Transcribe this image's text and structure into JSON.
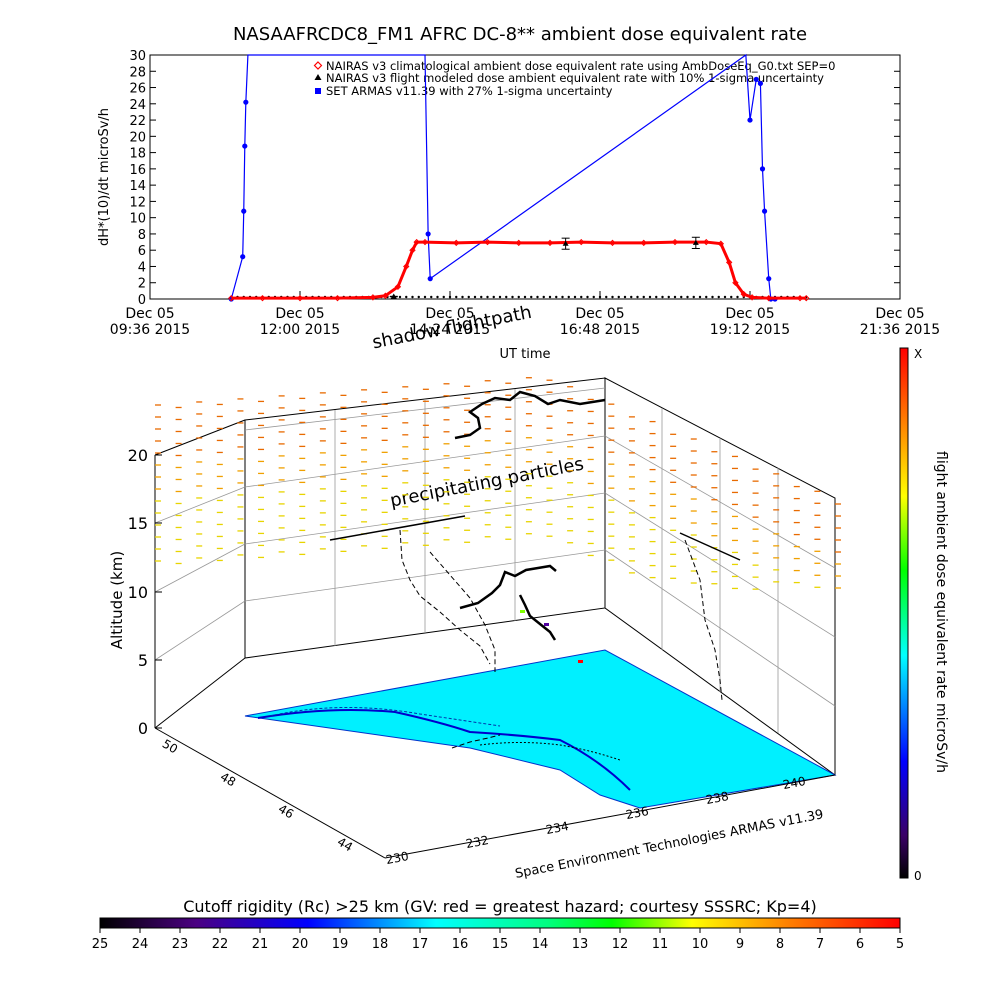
{
  "title": "NASAAFRCDC8_FM1 AFRC DC-8** ambient dose equivalent rate",
  "top_chart": {
    "ylabel": "dH*(10)/dt microSv/h",
    "xlabel": "UT time",
    "y_ticks": [
      "0",
      "2",
      "4",
      "6",
      "8",
      "10",
      "12",
      "14",
      "16",
      "18",
      "20",
      "22",
      "24",
      "26",
      "28",
      "30"
    ],
    "x_ticks": [
      {
        "l1": "Dec 05",
        "l2": "09:36 2015"
      },
      {
        "l1": "Dec 05",
        "l2": "12:00 2015"
      },
      {
        "l1": "Dec 05",
        "l2": "14:24 2015"
      },
      {
        "l1": "Dec 05",
        "l2": "16:48 2015"
      },
      {
        "l1": "Dec 05",
        "l2": "19:12 2015"
      },
      {
        "l1": "Dec 05",
        "l2": "21:36 2015"
      }
    ],
    "legend": [
      "NAIRAS v3 climatological ambient dose equivalent rate using AmbDoseEq_G0.txt SEP=0",
      "NAIRAS v3 flight modeled dose ambient equivalent rate with 10% 1-sigma uncertainty",
      "SET ARMAS v11.39 with 27% 1-sigma uncertainty"
    ],
    "colors": {
      "nairas": "#ff0000",
      "flight": "#000000",
      "armas": "#0000ff"
    }
  },
  "chart_data": [
    {
      "type": "line",
      "title": "NASAAFRCDC8_FM1 AFRC DC-8** ambient dose equivalent rate",
      "xlabel": "UT time",
      "ylabel": "dH*(10)/dt microSv/h",
      "xlim": [
        "2015-12-05 09:36",
        "2015-12-05 21:36"
      ],
      "ylim": [
        0,
        30
      ],
      "grid": false,
      "legend_position": "top",
      "series": [
        {
          "name": "NAIRAS v3 climatological ambient dose equivalent rate using AmbDoseEq_G0.txt SEP=0",
          "x": [
            "10:54",
            "11:24",
            "12:00",
            "12:36",
            "13:10",
            "13:22",
            "13:34",
            "13:42",
            "13:48",
            "13:52",
            "14:00",
            "14:30",
            "15:00",
            "15:30",
            "16:00",
            "16:30",
            "17:00",
            "17:30",
            "18:00",
            "18:30",
            "18:44",
            "18:52",
            "18:58",
            "19:06",
            "19:14",
            "19:30",
            "20:00",
            "20:06"
          ],
          "y": [
            0.1,
            0.1,
            0.1,
            0.1,
            0.2,
            0.4,
            1.5,
            4.0,
            6.0,
            7.0,
            7.0,
            6.9,
            7.0,
            6.9,
            6.9,
            7.0,
            6.9,
            6.9,
            7.0,
            7.0,
            6.8,
            4.5,
            2.0,
            0.6,
            0.2,
            0.1,
            0.1,
            0.1
          ]
        },
        {
          "name": "NAIRAS v3 flight modeled dose ambient equivalent rate with 10% 1-sigma uncertainty",
          "x": [
            "13:30",
            "16:15",
            "18:20"
          ],
          "y": [
            0.3,
            6.8,
            6.9
          ],
          "error": [
            0.03,
            0.68,
            0.69
          ]
        },
        {
          "name": "SET ARMAS v11.39 with 27% 1-sigma uncertainty",
          "x": [
            "10:54",
            "11:05",
            "11:06",
            "11:07",
            "11:08",
            "11:10",
            "11:14",
            "14:00",
            "14:03",
            "14:05",
            "19:08",
            "19:12",
            "19:18",
            "19:22",
            "19:24",
            "19:26",
            "19:30",
            "19:32",
            "19:36"
          ],
          "y": [
            0,
            5.2,
            10.8,
            18.8,
            24.2,
            30,
            30,
            30,
            8.0,
            2.5,
            30,
            22.0,
            27.0,
            26.5,
            16.0,
            10.8,
            2.5,
            0,
            0
          ]
        }
      ]
    },
    {
      "type": "scatter",
      "title": "shadow flightpath",
      "zlabel": "Altitude (km)",
      "xlabel": "Space Environment Technologies ARMAS v11.39",
      "zlim": [
        0,
        20
      ],
      "y_ticks": [
        "50",
        "48",
        "46",
        "44"
      ],
      "x_ticks": [
        "230",
        "232",
        "234",
        "236",
        "238",
        "240"
      ],
      "z_ticks": [
        "0",
        "5",
        "10",
        "15",
        "20"
      ],
      "annotations": [
        "precipitating particles"
      ],
      "colorbar": {
        "label": "flight ambient dose equivalent rate microSv/h",
        "top": "X",
        "bottom": "0"
      }
    },
    {
      "type": "heatmap",
      "title": "Cutoff rigidity (Rc) >25 km (GV: red = greatest hazard; courtesy SSSRC; Kp=4)",
      "ticks": [
        "25",
        "24",
        "23",
        "22",
        "21",
        "20",
        "19",
        "18",
        "17",
        "16",
        "15",
        "14",
        "13",
        "12",
        "11",
        "10",
        "9",
        "8",
        "7",
        "6",
        "5"
      ]
    }
  ],
  "scene": {
    "title": "shadow flightpath",
    "zlabel": "Altitude (km)",
    "annotation": "precipitating particles",
    "xaxis_title": "Space Environment Technologies ARMAS v11.39",
    "z_ticks": [
      "0",
      "5",
      "10",
      "15",
      "20"
    ],
    "y_ticks": [
      "50",
      "48",
      "46",
      "44"
    ],
    "x_ticks": [
      "230",
      "232",
      "234",
      "236",
      "238",
      "240"
    ]
  },
  "colorbar_right": {
    "label": "flight ambient dose equivalent rate microSv/h",
    "top": "X",
    "bottom": "0"
  },
  "bottom_bar": {
    "title": "Cutoff rigidity (Rc) >25 km (GV: red = greatest hazard; courtesy SSSRC; Kp=4)",
    "ticks": [
      "25",
      "24",
      "23",
      "22",
      "21",
      "20",
      "19",
      "18",
      "17",
      "16",
      "15",
      "14",
      "13",
      "12",
      "11",
      "10",
      "9",
      "8",
      "7",
      "6",
      "5"
    ]
  }
}
